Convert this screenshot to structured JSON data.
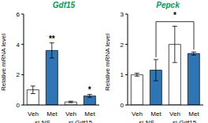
{
  "chart_data": [
    {
      "type": "bar",
      "title": "Gdf15",
      "y_label": "Relative mRNA level",
      "categories": [
        "Veh",
        "Met",
        "Veh",
        "Met"
      ],
      "groups": [
        {
          "label": "si-NS",
          "indices": [
            0,
            1
          ]
        },
        {
          "label": "si-Gdf15",
          "indices": [
            2,
            3
          ]
        }
      ],
      "values": [
        1.0,
        3.6,
        0.2,
        0.6
      ],
      "errors": [
        0.25,
        0.5,
        0.05,
        0.1
      ],
      "colors": [
        "#ffffff",
        "#2e75b6",
        "#ffffff",
        "#2e75b6"
      ],
      "ylim": [
        0,
        6
      ],
      "yticks": [
        0,
        2,
        4,
        6
      ],
      "annotations": [
        {
          "text": "**",
          "index": 1
        },
        {
          "text": "*",
          "index": 3
        }
      ]
    },
    {
      "type": "bar",
      "title": "Pepck",
      "y_label": "Relative mRNA level",
      "categories": [
        "Veh",
        "Met",
        "Veh",
        "Met"
      ],
      "groups": [
        {
          "label": "si-NS",
          "indices": [
            0,
            1
          ]
        },
        {
          "label": "si-Gdf15",
          "indices": [
            2,
            3
          ]
        }
      ],
      "values": [
        1.0,
        1.15,
        2.0,
        1.7
      ],
      "errors": [
        0.05,
        0.35,
        0.6,
        0.05
      ],
      "colors": [
        "#ffffff",
        "#2e75b6",
        "#ffffff",
        "#2e75b6"
      ],
      "ylim": [
        0,
        3
      ],
      "yticks": [
        0,
        1,
        2,
        3
      ],
      "annotations": [
        {
          "text": "*",
          "from": 1,
          "to": 3
        }
      ]
    }
  ]
}
